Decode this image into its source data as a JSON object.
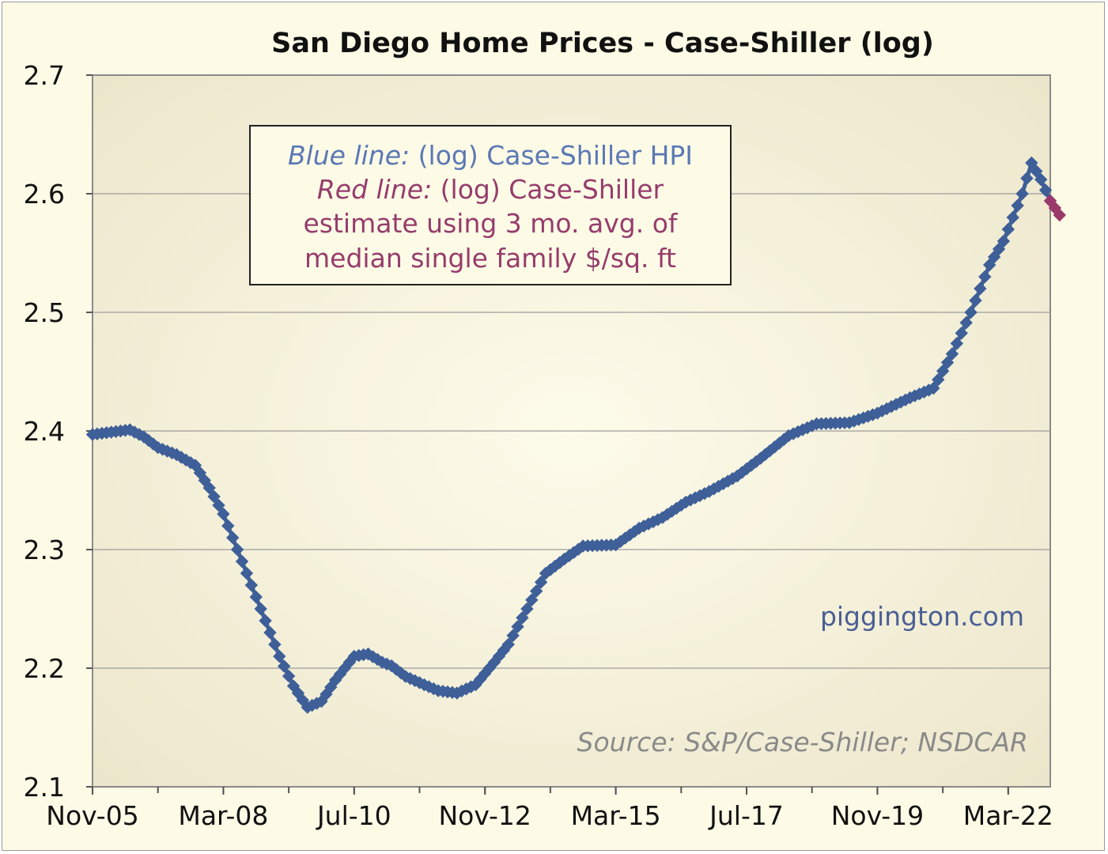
{
  "chart_data": {
    "type": "line",
    "title": "San Diego Home Prices - Case-Shiller (log)",
    "xlabel": "",
    "ylabel": "",
    "ylim": [
      2.1,
      2.7
    ],
    "yticks": [
      "2.1",
      "2.2",
      "2.3",
      "2.4",
      "2.5",
      "2.6",
      "2.7"
    ],
    "xlim": [
      "2005-11",
      "2022-12"
    ],
    "xticks": [
      {
        "label": "Nov-05",
        "date": "2005-11"
      },
      {
        "label": "Mar-08",
        "date": "2008-03"
      },
      {
        "label": "Jul-10",
        "date": "2010-07"
      },
      {
        "label": "Nov-12",
        "date": "2012-11"
      },
      {
        "label": "Mar-15",
        "date": "2015-03"
      },
      {
        "label": "Jul-17",
        "date": "2017-07"
      },
      {
        "label": "Nov-19",
        "date": "2019-11"
      },
      {
        "label": "Mar-22",
        "date": "2022-03"
      }
    ],
    "grid": true,
    "legend": {
      "line1_italic": "Blue line:",
      "line1_rest": " (log) Case-Shiller HPI",
      "line2_italic": "Red line:",
      "line2_rest": " (log) Case-Shiller",
      "line3": "estimate using 3 mo. avg. of",
      "line4": "median single family $/sq. ft"
    },
    "watermark": "piggington.com",
    "source": "Source: S&P/Case-Shiller; NSDCAR",
    "colors": {
      "blue_series": "#3e5f98",
      "red_series": "#9a3a6a",
      "legend_blue": "#5b78b5",
      "legend_red": "#963c6c",
      "plot_bg_edge": "#ebe5c9",
      "plot_bg_center": "#fdfbea",
      "watermark": "#4a5f95",
      "source_text": "#8a8a8a"
    },
    "series": [
      {
        "id": "blue",
        "points": [
          [
            "2005-11",
            2.397
          ],
          [
            "2006-03",
            2.399
          ],
          [
            "2006-07",
            2.401
          ],
          [
            "2006-10",
            2.395
          ],
          [
            "2007-01",
            2.386
          ],
          [
            "2007-05",
            2.38
          ],
          [
            "2007-09",
            2.371
          ],
          [
            "2007-12",
            2.352
          ],
          [
            "2008-03",
            2.33
          ],
          [
            "2008-06",
            2.3
          ],
          [
            "2008-09",
            2.27
          ],
          [
            "2008-12",
            2.24
          ],
          [
            "2009-03",
            2.21
          ],
          [
            "2009-06",
            2.185
          ],
          [
            "2009-09",
            2.167
          ],
          [
            "2009-12",
            2.172
          ],
          [
            "2010-03",
            2.19
          ],
          [
            "2010-07",
            2.21
          ],
          [
            "2010-10",
            2.212
          ],
          [
            "2011-01",
            2.205
          ],
          [
            "2011-03",
            2.202
          ],
          [
            "2011-06",
            2.193
          ],
          [
            "2011-10",
            2.186
          ],
          [
            "2012-01",
            2.181
          ],
          [
            "2012-05",
            2.179
          ],
          [
            "2012-09",
            2.186
          ],
          [
            "2013-01",
            2.205
          ],
          [
            "2013-04",
            2.22
          ],
          [
            "2013-08",
            2.25
          ],
          [
            "2013-12",
            2.28
          ],
          [
            "2014-04",
            2.292
          ],
          [
            "2014-08",
            2.303
          ],
          [
            "2015-03",
            2.304
          ],
          [
            "2015-08",
            2.318
          ],
          [
            "2016-01",
            2.327
          ],
          [
            "2016-06",
            2.34
          ],
          [
            "2016-11",
            2.349
          ],
          [
            "2017-05",
            2.362
          ],
          [
            "2017-10",
            2.377
          ],
          [
            "2018-04",
            2.396
          ],
          [
            "2018-10",
            2.406
          ],
          [
            "2019-05",
            2.407
          ],
          [
            "2019-11",
            2.415
          ],
          [
            "2020-06",
            2.428
          ],
          [
            "2020-11",
            2.436
          ],
          [
            "2021-03",
            2.465
          ],
          [
            "2021-07",
            2.5
          ],
          [
            "2021-11",
            2.54
          ],
          [
            "2022-02",
            2.56
          ],
          [
            "2022-06",
            2.6
          ],
          [
            "2022-08",
            2.626
          ],
          [
            "2022-10",
            2.612
          ],
          [
            "2022-12",
            2.594
          ]
        ]
      },
      {
        "id": "red",
        "points": [
          [
            "2022-12",
            2.594
          ],
          [
            "2023-02",
            2.582
          ]
        ]
      }
    ]
  }
}
